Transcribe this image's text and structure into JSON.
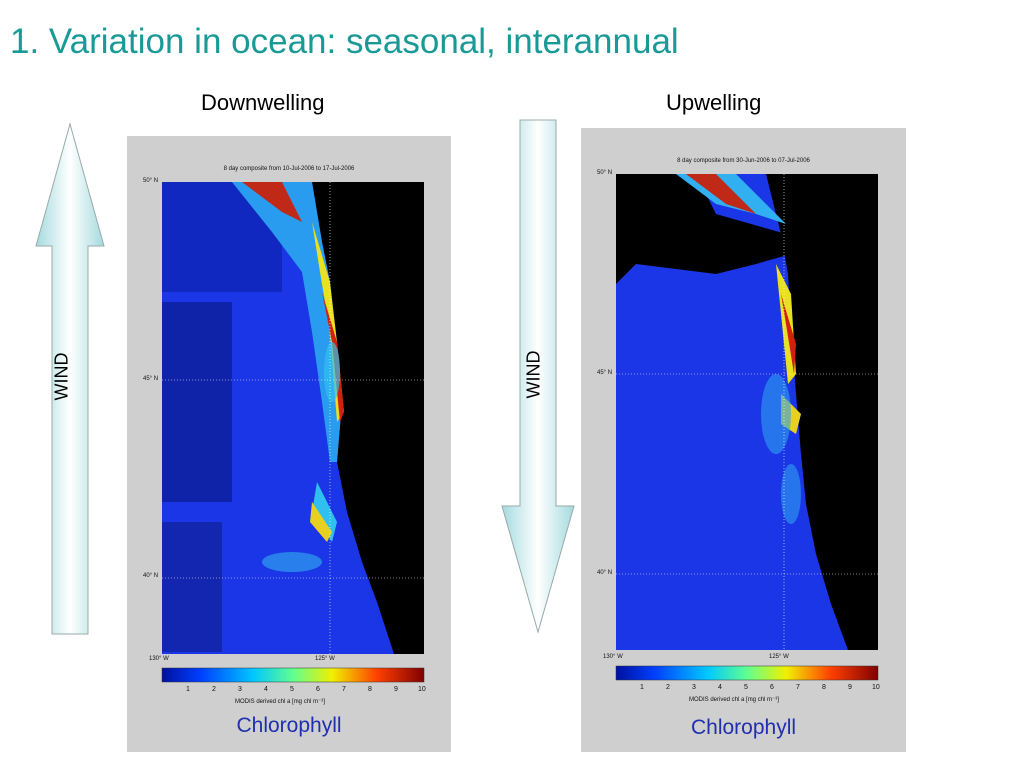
{
  "slide": {
    "title": "1. Variation in ocean: seasonal, interannual"
  },
  "panels": [
    {
      "heading": "Downwelling",
      "map_caption": "8 day composite from 10-Jul-2006 to 17-Jul-2006",
      "wind_label": "WIND",
      "wind_direction": "up",
      "lat_labels": [
        "50° N",
        "45° N",
        "40° N"
      ],
      "lon_labels": [
        "130° W",
        "125° W"
      ],
      "colorbar_ticks": [
        "1",
        "2",
        "3",
        "4",
        "5",
        "6",
        "7",
        "8",
        "9",
        "10"
      ],
      "colorbar_label": "MODIS derived chl a [mg chl m⁻³]",
      "footer": "Chlorophyll"
    },
    {
      "heading": "Upwelling",
      "map_caption": "8 day composite from 30-Jun-2006 to 07-Jul-2006",
      "wind_label": "WIND",
      "wind_direction": "down",
      "lat_labels": [
        "50° N",
        "45° N",
        "40° N"
      ],
      "lon_labels": [
        "130° W",
        "125° W"
      ],
      "colorbar_ticks": [
        "1",
        "2",
        "3",
        "4",
        "5",
        "6",
        "7",
        "8",
        "9",
        "10"
      ],
      "colorbar_label": "MODIS derived chl a [mg chl m⁻³]",
      "footer": "Chlorophyll"
    }
  ],
  "colors": {
    "title": "#1a9a96",
    "arrow_fill": "#a8dde0",
    "ocean_low": "#1030d8",
    "land": "#000000"
  }
}
